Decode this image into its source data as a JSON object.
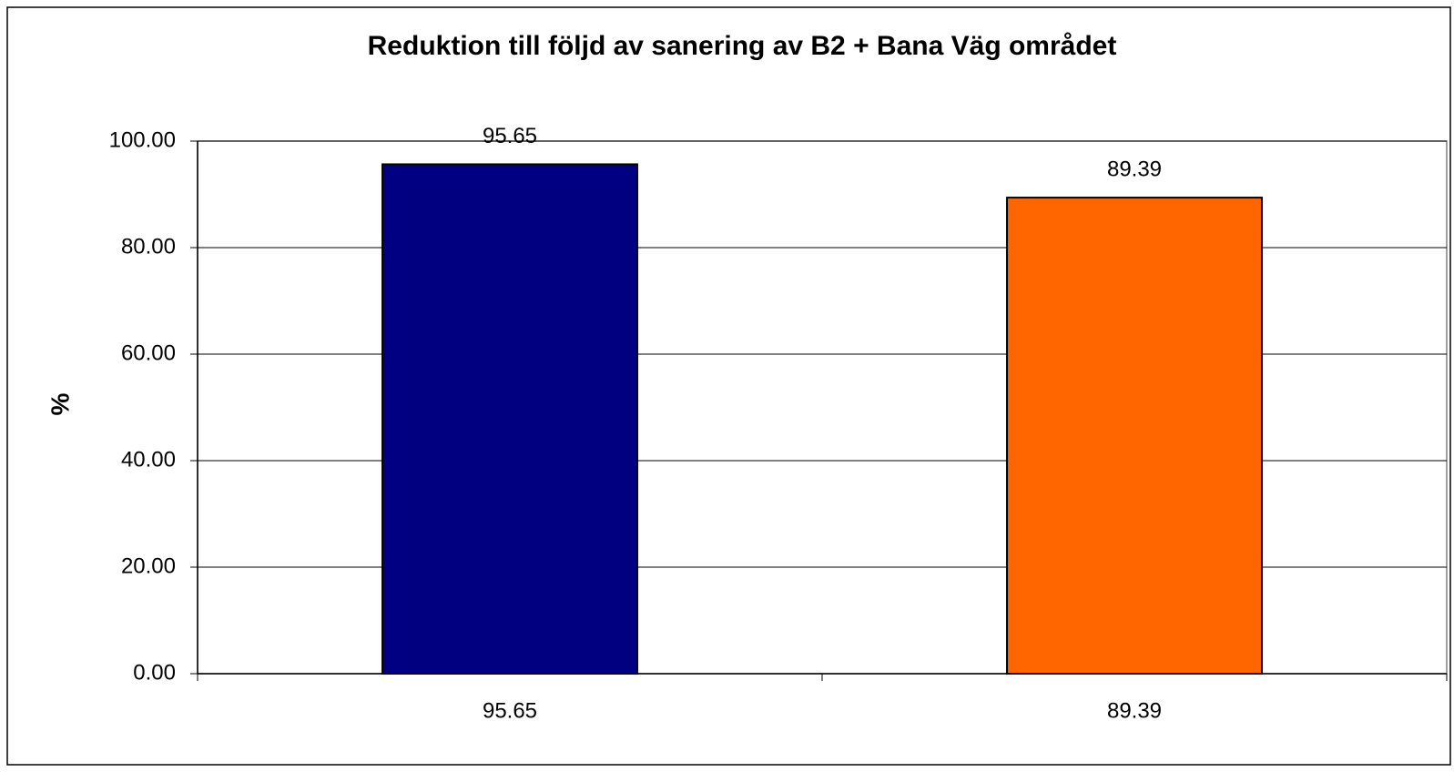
{
  "chart_data": {
    "type": "bar",
    "title": "Reduktion till följd av sanering av B2 + Bana Väg området",
    "ylabel": "%",
    "categories": [
      "95.65",
      "89.39"
    ],
    "values": [
      95.65,
      89.39
    ],
    "value_labels": [
      "95.65",
      "89.39"
    ],
    "colors": [
      "#000080",
      "#ff6600"
    ],
    "ylim": [
      0,
      100
    ],
    "yticks": [
      {
        "value": 0,
        "label": "0.00"
      },
      {
        "value": 20,
        "label": "20.00"
      },
      {
        "value": 40,
        "label": "40.00"
      },
      {
        "value": 60,
        "label": "60.00"
      },
      {
        "value": 80,
        "label": "80.00"
      },
      {
        "value": 100,
        "label": "100.00"
      }
    ],
    "grid": true
  }
}
